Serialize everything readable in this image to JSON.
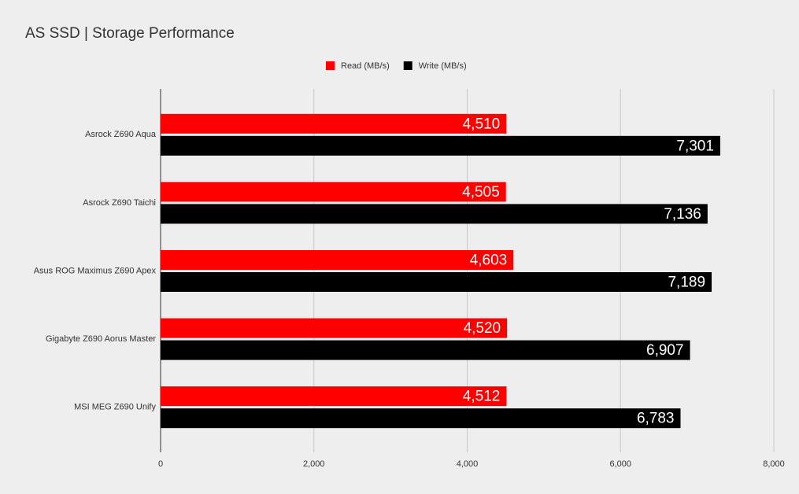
{
  "chart_data": {
    "type": "bar",
    "orientation": "horizontal",
    "title": "AS SSD | Storage Performance",
    "categories": [
      "Asrock Z690 Aqua",
      "Asrock Z690 Taichi",
      "Asus ROG Maximus Z690 Apex",
      "Gigabyte Z690 Aorus Master",
      "MSI MEG Z690 Unify"
    ],
    "series": [
      {
        "name": "Read (MB/s)",
        "color": "#ff0000",
        "values": [
          4510,
          4505,
          4603,
          4520,
          4512
        ],
        "value_labels": [
          "4,510",
          "4,505",
          "4,603",
          "4,520",
          "4,512"
        ]
      },
      {
        "name": "Write (MB/s)",
        "color": "#000000",
        "values": [
          7301,
          7136,
          7189,
          6907,
          6783
        ],
        "value_labels": [
          "7,301",
          "7,136",
          "7,189",
          "6,907",
          "6,783"
        ]
      }
    ],
    "xlim": [
      0,
      8000
    ],
    "xticks": [
      0,
      {
        "value": 2000,
        "label": "2,000"
      },
      {
        "value": 4000,
        "label": "4,000"
      },
      {
        "value": 6000,
        "label": "6,000"
      },
      {
        "value": 8000,
        "label": "8,000"
      }
    ],
    "grid": true,
    "legend": "top"
  }
}
